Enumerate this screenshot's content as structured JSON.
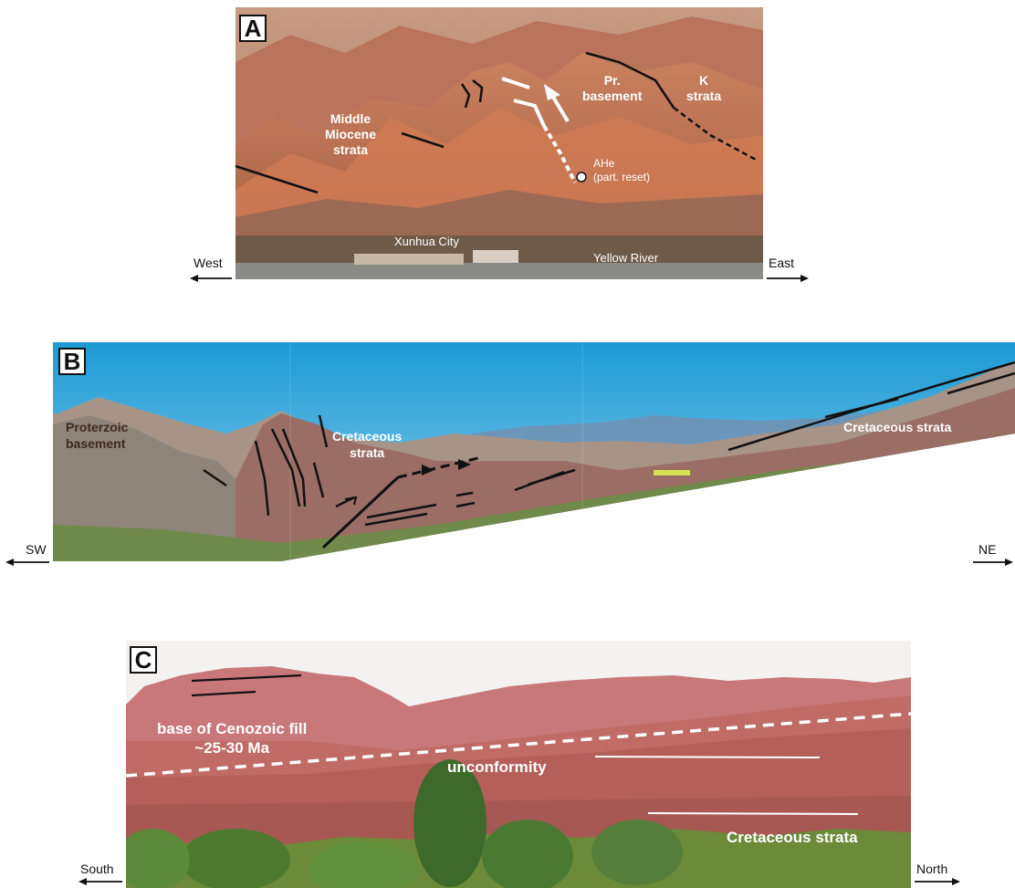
{
  "panel_a": {
    "label": "A",
    "annotations": {
      "middle_miocene": "Middle\nMiocene\nstrata",
      "pr_basement": "Pr.\nbasement",
      "k_strata": "K\nstrata",
      "ahe": "AHe\n(part. reset)",
      "xunhua": "Xunhua City",
      "yellow_river": "Yellow River"
    },
    "dir_left": "West",
    "dir_right": "East"
  },
  "panel_b": {
    "label": "B",
    "annotations": {
      "proterozoic": "Proterzoic\nbasement",
      "cretaceous_center": "Cretaceous\nstrata",
      "cretaceous_right": "Cretaceous strata"
    },
    "dir_left": "SW",
    "dir_right": "NE"
  },
  "panel_c": {
    "label": "C",
    "annotations": {
      "cenozoic": "base of Cenozoic fill\n~25-30 Ma",
      "unconformity": "unconformity",
      "cretaceous": "Cretaceous strata"
    },
    "dir_left": "South",
    "dir_right": "North"
  }
}
